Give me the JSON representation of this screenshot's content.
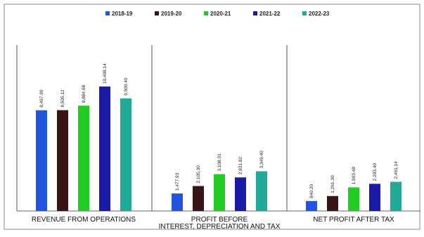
{
  "chart_data": {
    "type": "bar",
    "title": "",
    "xlabel": "",
    "ylabel": "",
    "series": [
      {
        "name": "2018-19",
        "color": "#2255dd"
      },
      {
        "name": "2019-20",
        "color": "#3a1414"
      },
      {
        "name": "2020-21",
        "color": "#22cc22"
      },
      {
        "name": "2021-22",
        "color": "#1a1aa8"
      },
      {
        "name": "2022-23",
        "color": "#22aa99"
      }
    ],
    "groups": [
      {
        "label_lines": [
          "REVENUE FROM OPERATIONS"
        ],
        "values": [
          8497,
          8505,
          8884,
          10498,
          9500
        ],
        "value_labels": [
          "8,497.90",
          "8,505.12",
          "8,884.68",
          "10,498.14",
          "9,500.40"
        ]
      },
      {
        "label_lines": [
          "PROFIT BEFORE",
          "INTEREST, DEPRECIATION AND TAX"
        ],
        "values": [
          1477,
          2105,
          3108,
          2832,
          3350
        ],
        "value_labels": [
          "1,477.93",
          "2,105.30",
          "3,108.01",
          "2,831.82",
          "3,349.40"
        ]
      },
      {
        "label_lines": [
          "NET PROFIT AFTER TAX"
        ],
        "values": [
          840,
          1261,
          1994,
          2293,
          2461
        ],
        "value_labels": [
          "840.20",
          "1,261.30",
          "1,993.48",
          "2,293.40",
          "2,461.14"
        ]
      }
    ],
    "ylim": [
      0,
      14000
    ],
    "grid": false,
    "legend_position": "top-center"
  }
}
